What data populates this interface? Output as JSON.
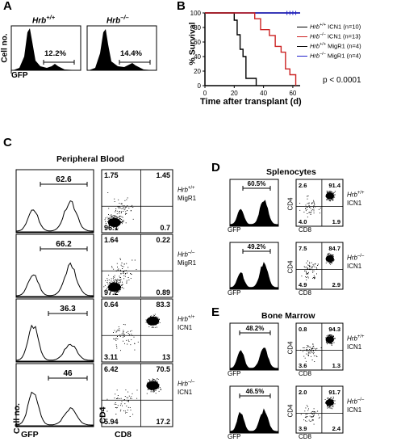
{
  "panels": {
    "A": {
      "letter": "A",
      "ylabel": "Cell no.",
      "xlabel": "GFP",
      "plots": [
        {
          "genotype": "Hrb+/+",
          "pct": "12.2%"
        },
        {
          "genotype": "Hrb–/–",
          "pct": "14.4%"
        }
      ]
    },
    "B": {
      "letter": "B",
      "ylabel": "% Survival",
      "xlabel": "Time after transplant (d)",
      "yticks": [
        "100",
        "80",
        "60",
        "40",
        "20",
        "0"
      ],
      "xticks": [
        "0",
        "20",
        "40",
        "60"
      ],
      "pvalue": "p < 0.0001",
      "legend": [
        {
          "gene": "Hrb",
          "sup": "+/+",
          "rest": " ICN1 (n=10)",
          "color": "#000000"
        },
        {
          "gene": "Hrb",
          "sup": "–/–",
          "rest": " ICN1 (n=13)",
          "color": "#cc2222"
        },
        {
          "gene": "Hrb",
          "sup": "+/+",
          "rest": " MigR1 (n=4)",
          "color": "#000000"
        },
        {
          "gene": "Hrb",
          "sup": "–/–",
          "rest": " MigR1 (n=4)",
          "color": "#2222cc"
        }
      ]
    },
    "C": {
      "letter": "C",
      "title": "Peripheral Blood",
      "ylabel": "Cell no.",
      "xlabel": "GFP",
      "ylabel2": "CD4",
      "xlabel2": "CD8",
      "rows": [
        {
          "gfp": "62.6",
          "q": [
            "1.75",
            "1.45",
            "96.1",
            "0.7"
          ],
          "gene": "Hrb",
          "sup": "+/+",
          "construct": "MigR1"
        },
        {
          "gfp": "66.2",
          "q": [
            "1.64",
            "0.22",
            "97.2",
            "0.89"
          ],
          "gene": "Hrb",
          "sup": "–/–",
          "construct": "MigR1"
        },
        {
          "gfp": "36.3",
          "q": [
            "0.64",
            "83.3",
            "3.11",
            "13"
          ],
          "gene": "Hrb",
          "sup": "+/+",
          "construct": "ICN1"
        },
        {
          "gfp": "46",
          "q": [
            "6.42",
            "70.5",
            "5.94",
            "17.2"
          ],
          "gene": "Hrb",
          "sup": "–/–",
          "construct": "ICN1"
        }
      ]
    },
    "D": {
      "letter": "D",
      "title": "Splenocytes",
      "xlabel": "GFP",
      "ylabel2": "CD4",
      "xlabel2": "CD8",
      "rows": [
        {
          "gfp": "60.5%",
          "q": [
            "2.6",
            "91.4",
            "4.0",
            "1.9"
          ],
          "gene": "Hrb",
          "sup": "+/+",
          "construct": "ICN1"
        },
        {
          "gfp": "49.2%",
          "q": [
            "7.5",
            "84.7",
            "4.9",
            "2.9"
          ],
          "gene": "Hrb",
          "sup": "–/–",
          "construct": "ICN1"
        }
      ]
    },
    "E": {
      "letter": "E",
      "title": "Bone Marrow",
      "xlabel": "GFP",
      "ylabel2": "CD4",
      "xlabel2": "CD8",
      "rows": [
        {
          "gfp": "48.2%",
          "q": [
            "0.8",
            "94.3",
            "3.6",
            "1.3"
          ],
          "gene": "Hrb",
          "sup": "+/+",
          "construct": "ICN1"
        },
        {
          "gfp": "46.5%",
          "q": [
            "2.0",
            "91.7",
            "3.9",
            "2.4"
          ],
          "gene": "Hrb",
          "sup": "–/–",
          "construct": "ICN1"
        }
      ]
    }
  },
  "chart_data": {
    "type": "line",
    "xlabel": "Time after transplant (d)",
    "ylabel": "% Survival",
    "xlim": [
      0,
      65
    ],
    "ylim": [
      0,
      100
    ],
    "series": [
      {
        "name": "Hrb+/+ ICN1 (n=10)",
        "color": "#000000",
        "x": [
          0,
          20,
          20,
          22,
          22,
          24,
          24,
          26,
          26,
          28,
          28,
          35,
          35
        ],
        "y": [
          100,
          100,
          90,
          90,
          70,
          70,
          50,
          50,
          40,
          40,
          10,
          10,
          0
        ]
      },
      {
        "name": "Hrb–/– ICN1 (n=13)",
        "color": "#cc2222",
        "x": [
          0,
          34,
          34,
          38,
          38,
          44,
          44,
          48,
          48,
          52,
          52,
          55,
          55,
          58,
          58,
          62,
          62
        ],
        "y": [
          100,
          100,
          92,
          92,
          77,
          77,
          69,
          69,
          54,
          54,
          46,
          46,
          23,
          23,
          15,
          15,
          0
        ]
      },
      {
        "name": "Hrb+/+ MigR1 (n=4)",
        "color": "#000000",
        "x": [
          0,
          65
        ],
        "y": [
          100,
          100
        ]
      },
      {
        "name": "Hrb–/– MigR1 (n=4)",
        "color": "#2222cc",
        "x": [
          0,
          65
        ],
        "y": [
          100,
          100
        ]
      }
    ]
  }
}
